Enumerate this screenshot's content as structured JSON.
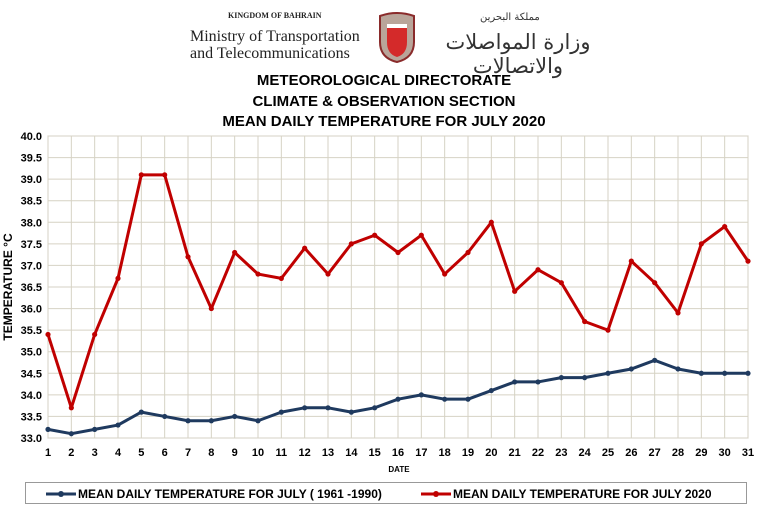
{
  "header": {
    "kingdom": "KINGDOM OF BAHRAIN",
    "ministry_line1": "Ministry of Transportation",
    "ministry_line2": "and Telecommunications",
    "arabic_kingdom": "مملكة البحرين",
    "arabic_ministry": "وزارة المواصلات والاتصالات"
  },
  "titles": [
    "METEOROLOGICAL DIRECTORATE",
    "CLIMATE & OBSERVATION  SECTION",
    "MEAN DAILY TEMPERATURE  FOR JULY 2020"
  ],
  "chart_data": {
    "type": "line",
    "title": "MEAN DAILY TEMPERATURE  FOR JULY 2020",
    "xlabel": "DATE",
    "ylabel": "TEMPERATURE °C",
    "ylim": [
      33.0,
      40.0
    ],
    "ytick_step": 0.5,
    "ytick_labels": [
      "33.0",
      "33.5",
      "34.0",
      "34.5",
      "35.0",
      "35.5",
      "36.0",
      "36.5",
      "37.0",
      "37.5",
      "38.0",
      "38.5",
      "39.0",
      "39.5",
      "40.0"
    ],
    "x": [
      1,
      2,
      3,
      4,
      5,
      6,
      7,
      8,
      9,
      10,
      11,
      12,
      13,
      14,
      15,
      16,
      17,
      18,
      19,
      20,
      21,
      22,
      23,
      24,
      25,
      26,
      27,
      28,
      29,
      30,
      31
    ],
    "grid": true,
    "legend_position": "bottom",
    "series": [
      {
        "name": "MEAN DAILY TEMPERATURE FOR JULY ( 1961 -1990)",
        "color": "#1f3a5f",
        "values": [
          33.2,
          33.1,
          33.2,
          33.3,
          33.6,
          33.5,
          33.4,
          33.4,
          33.5,
          33.4,
          33.6,
          33.7,
          33.7,
          33.6,
          33.7,
          33.9,
          34.0,
          33.9,
          33.9,
          34.1,
          34.3,
          34.3,
          34.4,
          34.4,
          34.5,
          34.6,
          34.8,
          34.6,
          34.5,
          34.5,
          34.5
        ]
      },
      {
        "name": "MEAN DAILY TEMPERATURE FOR JULY 2020",
        "color": "#c00000",
        "values": [
          35.4,
          33.7,
          35.4,
          36.7,
          39.1,
          39.1,
          37.2,
          36.0,
          37.3,
          36.8,
          36.7,
          37.4,
          36.8,
          37.5,
          37.7,
          37.3,
          37.7,
          36.8,
          37.3,
          38.0,
          36.4,
          36.9,
          36.6,
          35.7,
          35.5,
          37.1,
          36.6,
          35.9,
          37.5,
          37.9,
          37.1
        ]
      }
    ]
  }
}
